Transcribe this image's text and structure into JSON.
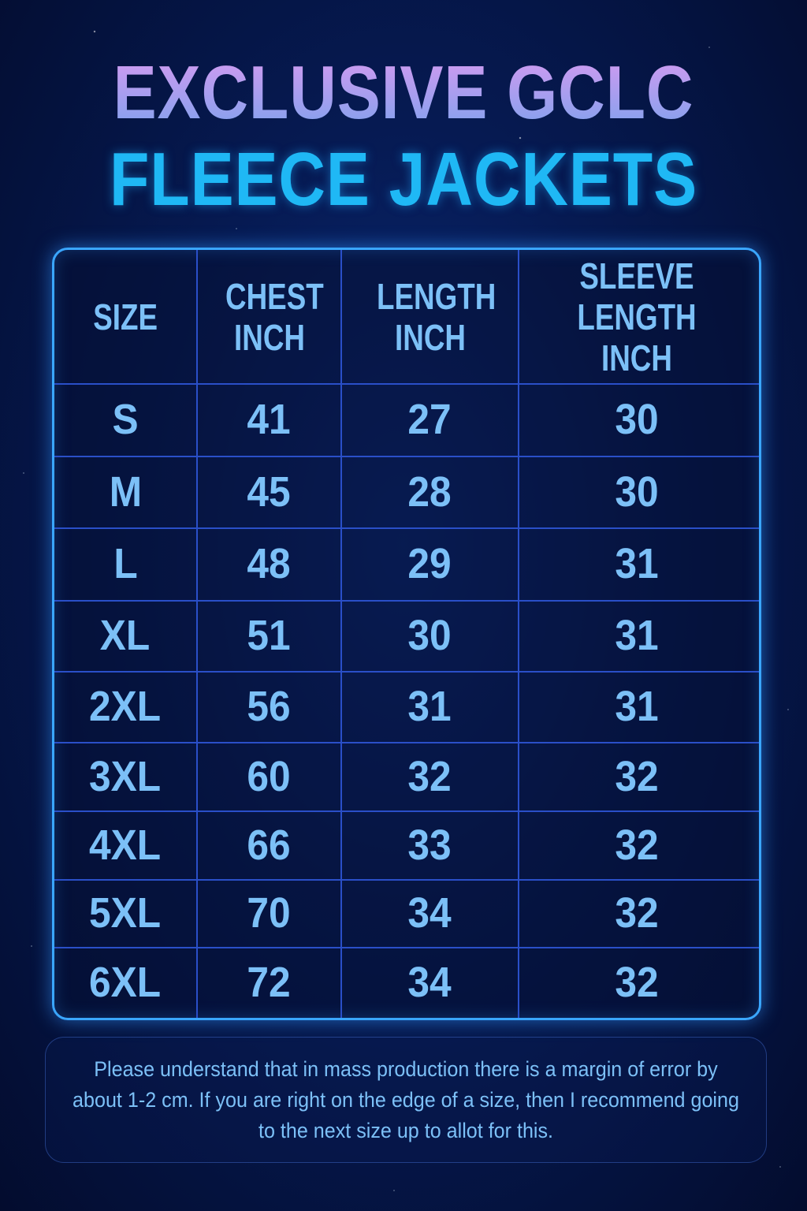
{
  "title": {
    "line1": "EXCLUSIVE GCLC",
    "line2": "FLEECE JACKETS"
  },
  "table": {
    "headers": [
      "SIZE",
      "CHEST INCH",
      "LENGTH INCH",
      "SLEEVE LENGTH INCH"
    ],
    "rows": [
      [
        "S",
        "41",
        "27",
        "30"
      ],
      [
        "M",
        "45",
        "28",
        "30"
      ],
      [
        "L",
        "48",
        "29",
        "31"
      ],
      [
        "XL",
        "51",
        "30",
        "31"
      ],
      [
        "2XL",
        "56",
        "31",
        "31"
      ],
      [
        "3XL",
        "60",
        "32",
        "32"
      ],
      [
        "4XL",
        "66",
        "33",
        "32"
      ],
      [
        "5XL",
        "70",
        "34",
        "32"
      ],
      [
        "6XL",
        "72",
        "34",
        "32"
      ]
    ]
  },
  "note": "Please understand that in mass production there is a margin of error by about 1-2 cm. If you are right on the edge of a size, then I recommend going to the next size up to allot for this.",
  "colors": {
    "background": "#061a52",
    "title_top": "#b59af0",
    "title_bottom": "#1fb8f5",
    "table_border": "#3aa6ff",
    "text": "#7cc0f7"
  }
}
